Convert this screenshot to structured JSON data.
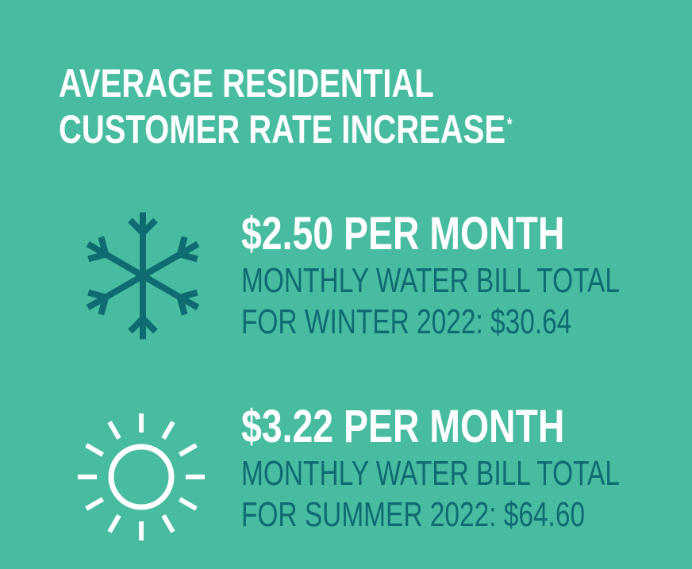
{
  "title": {
    "line1": "AVERAGE RESIDENTIAL",
    "line2": "CUSTOMER RATE INCREASE",
    "footnote_mark": "*"
  },
  "colors": {
    "background": "#47bca0",
    "heading": "#ffffff",
    "detail": "#0e6b72",
    "snowflake": "#0e6b72",
    "sun": "#ffffff"
  },
  "winter": {
    "icon": "snowflake-icon",
    "amount": "$2.50 PER MONTH",
    "detail_line1": "MONTHLY WATER BILL TOTAL",
    "detail_line2": "FOR WINTER 2022: $30.64"
  },
  "summer": {
    "icon": "sun-icon",
    "amount": "$3.22 PER MONTH",
    "detail_line1": "MONTHLY WATER BILL TOTAL",
    "detail_line2": "FOR SUMMER 2022: $64.60"
  }
}
